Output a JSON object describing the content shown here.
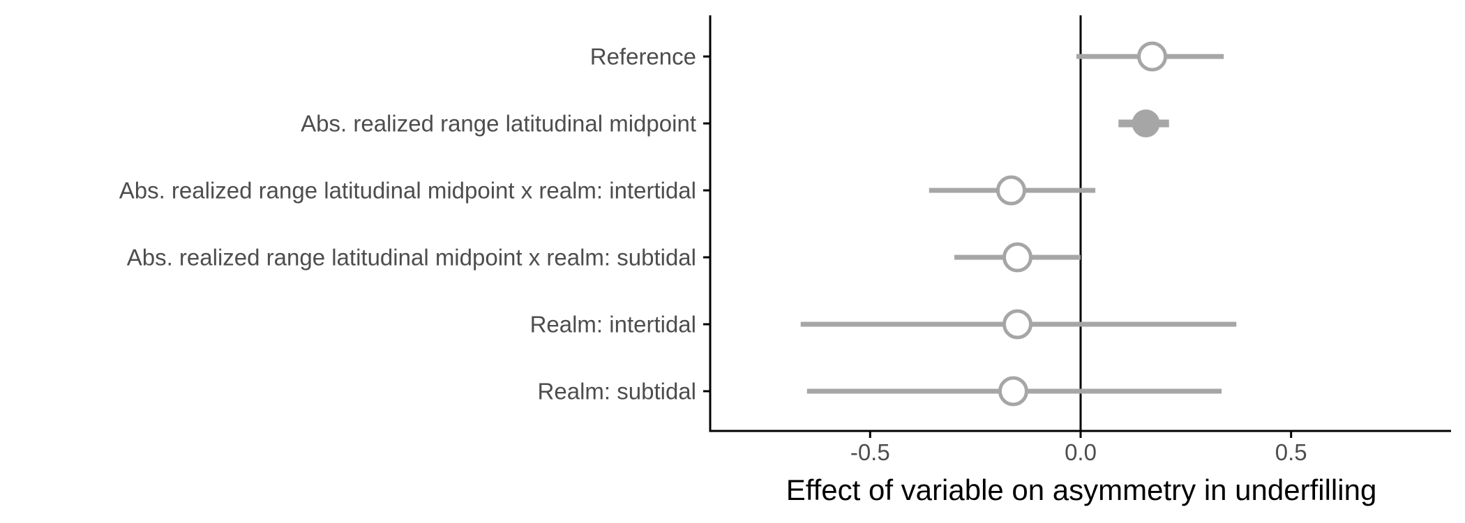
{
  "chart_data": {
    "type": "scatter",
    "subtype": "forest-plot",
    "xlabel": "Effect of variable on asymmetry in underfilling",
    "ylabel": "",
    "xlim": [
      -0.88,
      0.88
    ],
    "x_ticks": [
      -0.5,
      0.0,
      0.5
    ],
    "x_tick_labels": [
      "-0.5",
      "0.0",
      "0.5"
    ],
    "reference_line_x": 0,
    "grid": false,
    "legend": "none",
    "colors": {
      "estimate": "#a6a6a6",
      "axis": "#000000",
      "label": "#4d4d4d",
      "open_fill": "#ffffff"
    },
    "categories": [
      "Reference",
      "Abs. realized range latitudinal midpoint",
      "Abs. realized range latitudinal midpoint x realm: intertidal",
      "Abs. realized range latitudinal midpoint x realm: subtidal",
      "Realm: intertidal",
      "Realm: subtidal"
    ],
    "points": [
      {
        "estimate": 0.17,
        "lower": -0.01,
        "upper": 0.34,
        "filled": false
      },
      {
        "estimate": 0.155,
        "lower": 0.09,
        "upper": 0.21,
        "filled": true
      },
      {
        "estimate": -0.165,
        "lower": -0.36,
        "upper": 0.035,
        "filled": false
      },
      {
        "estimate": -0.15,
        "lower": -0.3,
        "upper": 0.0,
        "filled": false
      },
      {
        "estimate": -0.15,
        "lower": -0.665,
        "upper": 0.37,
        "filled": false
      },
      {
        "estimate": -0.16,
        "lower": -0.65,
        "upper": 0.335,
        "filled": false
      }
    ]
  }
}
